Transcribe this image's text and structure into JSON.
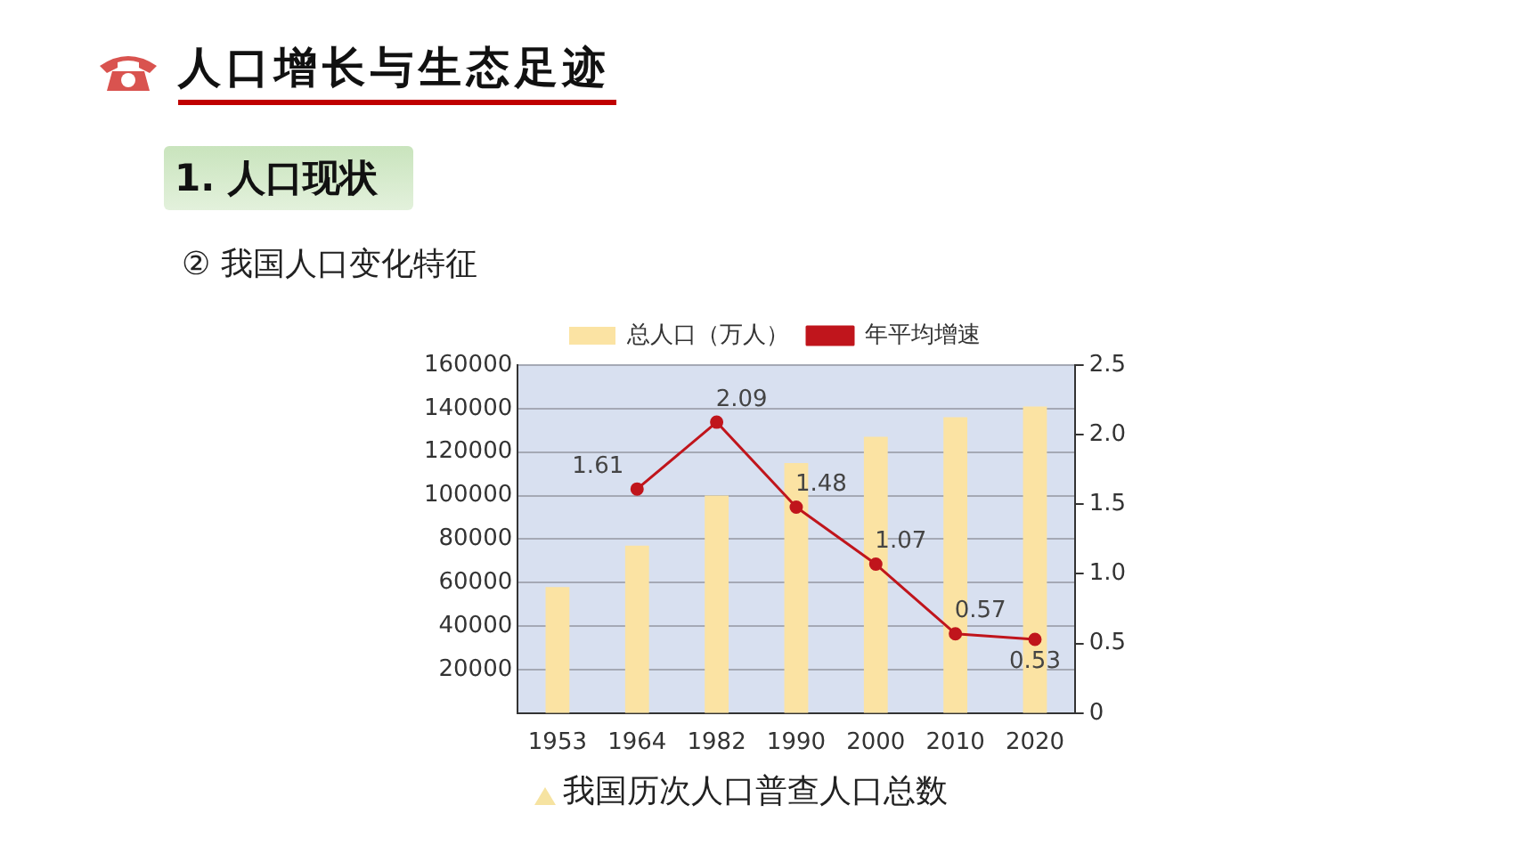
{
  "chart_data": {
    "type": "bar",
    "title": "人口增长与生态足迹",
    "annotations": [
      "1. 人口现状",
      "② 我国人口变化特征",
      "我国历次人口普查人口总数"
    ],
    "categories": [
      "1953",
      "1964",
      "1982",
      "1990",
      "2000",
      "2010",
      "2020"
    ],
    "series": [
      {
        "name": "总人口（万人）",
        "color": "#fbe3a3",
        "values": [
          58000,
          77000,
          100000,
          115000,
          127000,
          136000,
          141000
        ]
      },
      {
        "name": "年平均增速",
        "type": "line",
        "axis": "y2",
        "color": "#c0151c",
        "marker": "circle",
        "values": [
          null,
          1.61,
          2.09,
          1.48,
          1.07,
          0.57,
          0.53
        ],
        "value_labels": [
          null,
          "1.61",
          "2.09",
          "1.48",
          "1.07",
          "0.57",
          "0.53"
        ]
      }
    ],
    "ylim": [
      0,
      160000
    ],
    "yticks": [
      20000,
      40000,
      60000,
      80000,
      100000,
      120000,
      140000,
      160000
    ],
    "y2lim": [
      0,
      2.5
    ],
    "y2ticks": [
      0,
      0.5,
      {
        "value": 1,
        "label": "1.0"
      },
      {
        "value": 1.5,
        "label": "1.5"
      },
      {
        "value": 2,
        "label": "2.0"
      },
      2.5
    ],
    "grid": "y",
    "legend": "top"
  }
}
